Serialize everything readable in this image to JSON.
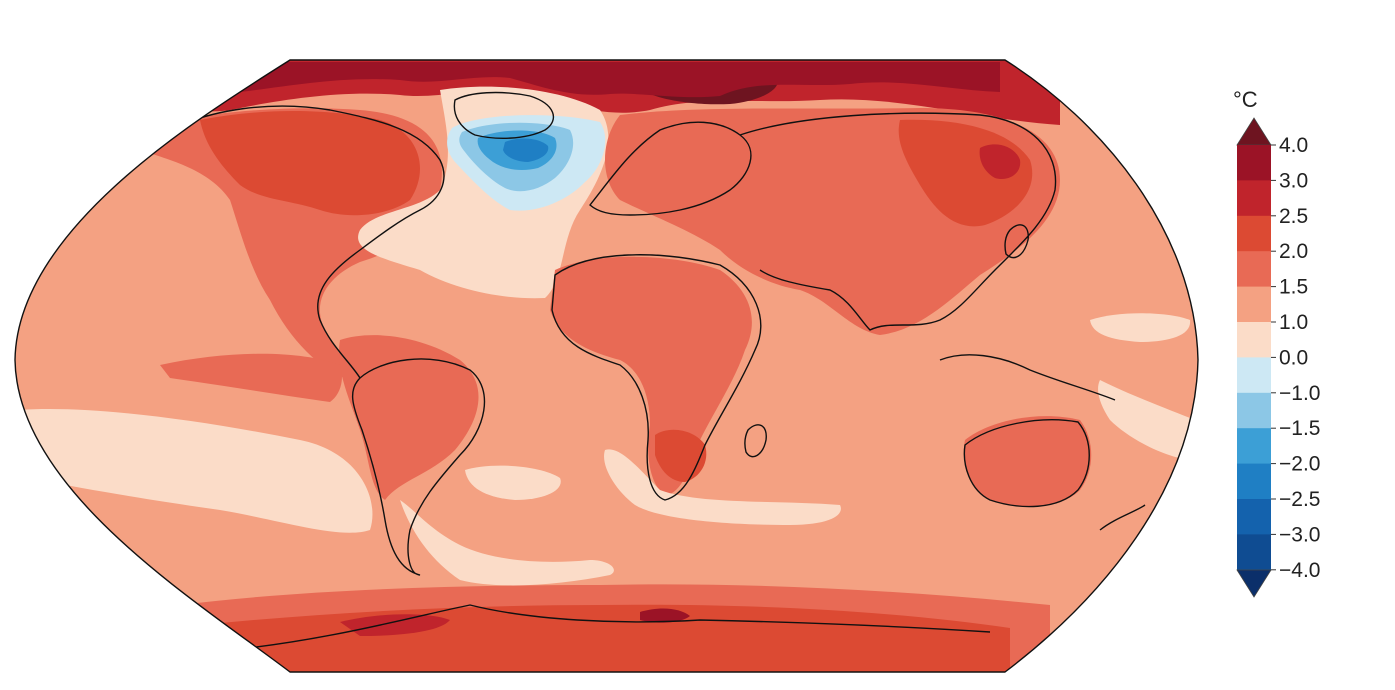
{
  "colorbar": {
    "unit": "°C",
    "ticks": [
      "4.0",
      "3.0",
      "2.5",
      "2.0",
      "1.5",
      "1.0",
      "0.0",
      "−1.0",
      "−1.5",
      "−2.0",
      "−2.5",
      "−3.0",
      "−4.0"
    ],
    "bins": [
      {
        "from": 3.0,
        "to": 4.0,
        "color": "#9b1326"
      },
      {
        "from": 2.5,
        "to": 3.0,
        "color": "#c0242c"
      },
      {
        "from": 2.0,
        "to": 2.5,
        "color": "#dc4a33"
      },
      {
        "from": 1.5,
        "to": 2.0,
        "color": "#e86a55"
      },
      {
        "from": 1.0,
        "to": 1.5,
        "color": "#f4a182"
      },
      {
        "from": 0.0,
        "to": 1.0,
        "color": "#fbdcc8"
      },
      {
        "from": -1.0,
        "to": 0.0,
        "color": "#cde8f4"
      },
      {
        "from": -1.5,
        "to": -1.0,
        "color": "#8cc7e6"
      },
      {
        "from": -2.0,
        "to": -1.5,
        "color": "#3c9fd6"
      },
      {
        "from": -2.5,
        "to": -2.0,
        "color": "#1f7fc4"
      },
      {
        "from": -3.0,
        "to": -2.5,
        "color": "#1462ad"
      },
      {
        "from": -4.0,
        "to": -3.0,
        "color": "#0f4c92"
      }
    ],
    "overflow_high_color": "#6e1420",
    "overflow_low_color": "#0b2f6a"
  },
  "map": {
    "projection": "Robinson",
    "ocean_base_color": "#f4a182",
    "coastline_color": "#111111"
  }
}
